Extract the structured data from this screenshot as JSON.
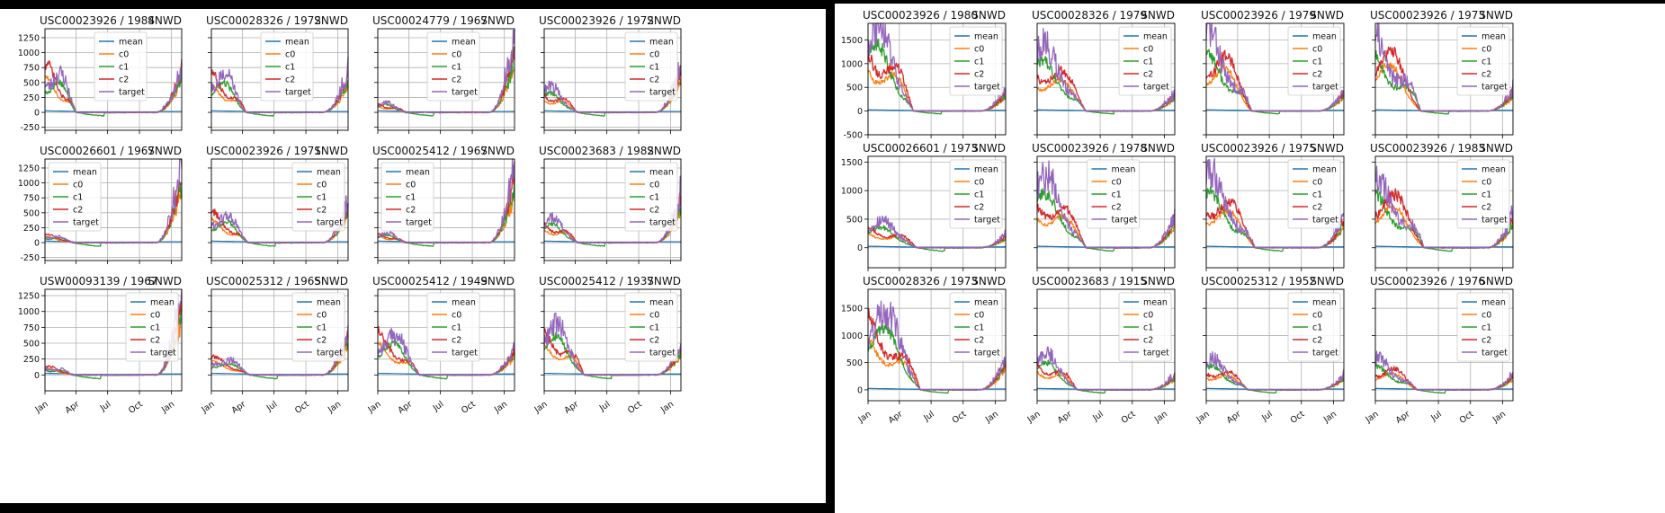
{
  "colors": {
    "mean": "#1f77b4",
    "c0": "#ff7f0e",
    "c1": "#2ca02c",
    "c2": "#d62728",
    "target": "#9467bd"
  },
  "chart_data": [
    {
      "panel": "left",
      "type": "line",
      "grid": true,
      "legend": [
        "mean",
        "c0",
        "c1",
        "c2",
        "target"
      ],
      "x_ticks": [
        "Jan",
        "Apr",
        "Jul",
        "Oct",
        "Jan"
      ],
      "rows": [
        {
          "ylim": [
            -300,
            1400
          ],
          "y_ticks": [
            -250,
            0,
            250,
            500,
            750,
            1000,
            1250
          ],
          "charts": [
            {
              "station": "USC00023926",
              "year": "1984",
              "measurement": "SNWD",
              "legend_loc": "upper-center",
              "shape": "early_high"
            },
            {
              "station": "USC00028326",
              "year": "1972",
              "measurement": "SNWD",
              "legend_loc": "upper-center",
              "shape": "early_high_b"
            },
            {
              "station": "USC00024779",
              "year": "1967",
              "measurement": "SNWD",
              "legend_loc": "upper-center",
              "shape": "low_spike_end"
            },
            {
              "station": "USC00023926",
              "year": "1972",
              "measurement": "SNWD",
              "legend_loc": "upper-right",
              "shape": "mid_low"
            }
          ]
        },
        {
          "ylim": [
            -300,
            1400
          ],
          "y_ticks": [
            -250,
            0,
            250,
            500,
            750,
            1000,
            1250
          ],
          "charts": [
            {
              "station": "USC00026601",
              "year": "1967",
              "measurement": "SNWD",
              "legend_loc": "upper-left",
              "shape": "low_spike_end_big"
            },
            {
              "station": "USC00023926",
              "year": "1971",
              "measurement": "SNWD",
              "legend_loc": "upper-right",
              "shape": "mid_a"
            },
            {
              "station": "USC00025412",
              "year": "1967",
              "measurement": "SNWD",
              "legend_loc": "upper-left",
              "shape": "low_spike_end"
            },
            {
              "station": "USC00023683",
              "year": "1982",
              "measurement": "SNWD",
              "legend_loc": "upper-right",
              "shape": "mid_low"
            }
          ]
        },
        {
          "ylim": [
            -250,
            1350
          ],
          "y_ticks": [
            0,
            250,
            500,
            750,
            1000,
            1250
          ],
          "charts": [
            {
              "station": "USW00093139",
              "year": "1967",
              "measurement": "SNWD",
              "legend_loc": "upper-right",
              "shape": "low_spike_end_big"
            },
            {
              "station": "USC00025312",
              "year": "1965",
              "measurement": "SNWD",
              "legend_loc": "upper-right",
              "shape": "mid_spike"
            },
            {
              "station": "USC00025412",
              "year": "1949",
              "measurement": "SNWD",
              "legend_loc": "upper-center",
              "shape": "early_mid"
            },
            {
              "station": "USC00025412",
              "year": "1937",
              "measurement": "SNWD",
              "legend_loc": "upper-right",
              "shape": "early_mid_b"
            }
          ]
        }
      ]
    },
    {
      "panel": "right",
      "type": "line",
      "grid": true,
      "legend": [
        "mean",
        "c0",
        "c1",
        "c2",
        "target"
      ],
      "x_ticks": [
        "Jan",
        "Apr",
        "Jul",
        "Oct",
        "Jan"
      ],
      "rows": [
        {
          "ylim": [
            -500,
            1850
          ],
          "y_ticks": [
            -500,
            0,
            500,
            1000,
            1500
          ],
          "charts": [
            {
              "station": "USC00023926",
              "year": "1980",
              "measurement": "SNWD",
              "legend_loc": "upper-right",
              "shape": "big_spring"
            },
            {
              "station": "USC00028326",
              "year": "1979",
              "measurement": "SNWD",
              "legend_loc": "upper-right",
              "shape": "spring_mid"
            },
            {
              "station": "USC00023926",
              "year": "1979",
              "measurement": "SNWD",
              "legend_loc": "upper-right",
              "shape": "spring_plateau"
            },
            {
              "station": "USC00023926",
              "year": "1973",
              "measurement": "SNWD",
              "legend_loc": "upper-right",
              "shape": "spring_plateau"
            }
          ]
        },
        {
          "ylim": [
            -350,
            1600
          ],
          "y_ticks": [
            0,
            500,
            1000,
            1500
          ],
          "charts": [
            {
              "station": "USC00026601",
              "year": "1973",
              "measurement": "SNWD",
              "legend_loc": "upper-right",
              "shape": "late_spring_small"
            },
            {
              "station": "USC00023926",
              "year": "1978",
              "measurement": "SNWD",
              "legend_loc": "upper-center",
              "shape": "spring_peak"
            },
            {
              "station": "USC00023926",
              "year": "1975",
              "measurement": "SNWD",
              "legend_loc": "upper-right",
              "shape": "spring_peak"
            },
            {
              "station": "USC00023926",
              "year": "1983",
              "measurement": "SNWD",
              "legend_loc": "upper-right",
              "shape": "spring_peak"
            }
          ]
        },
        {
          "ylim": [
            -200,
            1850
          ],
          "y_ticks": [
            0,
            500,
            1000,
            1500
          ],
          "charts": [
            {
              "station": "USC00028326",
              "year": "1973",
              "measurement": "SNWD",
              "legend_loc": "upper-right",
              "shape": "big_early"
            },
            {
              "station": "USC00023683",
              "year": "1915",
              "measurement": "SNWD",
              "legend_loc": "upper-right",
              "shape": "spring_small"
            },
            {
              "station": "USC00025312",
              "year": "1952",
              "measurement": "SNWD",
              "legend_loc": "upper-right",
              "shape": "spring_flat"
            },
            {
              "station": "USC00023926",
              "year": "1976",
              "measurement": "SNWD",
              "legend_loc": "upper-right",
              "shape": "spring_flat"
            }
          ]
        }
      ]
    }
  ]
}
